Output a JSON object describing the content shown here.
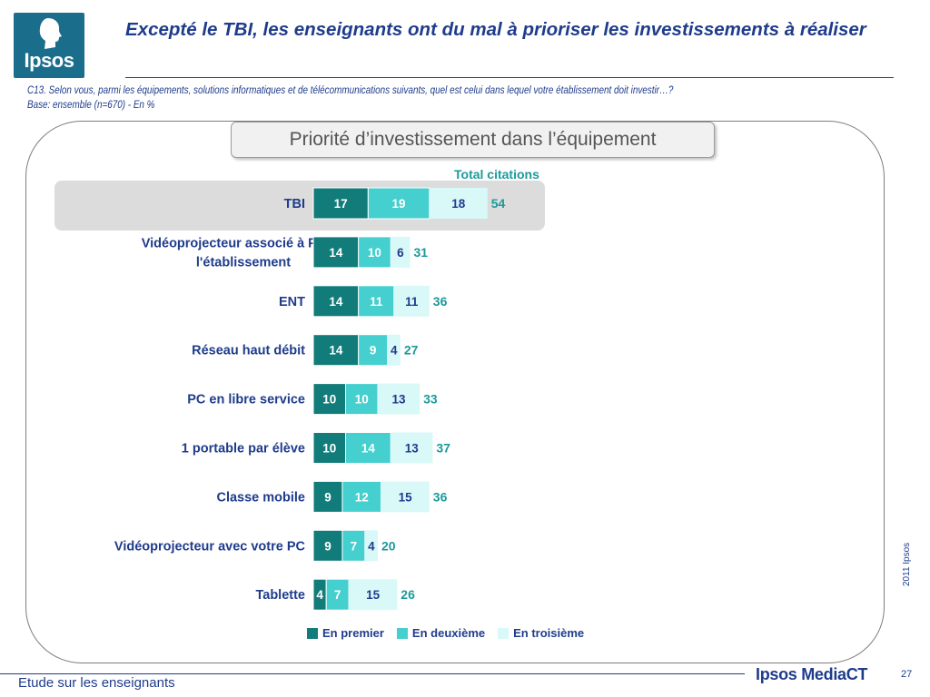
{
  "header": {
    "logo_text": "Ipsos",
    "title": "Excepté le TBI, les enseignants ont du mal à prioriser les investissements à réaliser",
    "question": "C13. Selon vous, parmi les équipements, solutions informatiques et de télécommunications suivants, quel est celui dans lequel votre établissement doit investir…?",
    "base": "Base: ensemble (n=670) - En %"
  },
  "colors": {
    "accent": "#1f3c8c",
    "premier": "#127c7a",
    "deuxieme": "#45cfcf",
    "troisieme": "#d9f8f8",
    "total": "#1c9a9a"
  },
  "chart_data": {
    "type": "bar",
    "orientation": "horizontal",
    "stacked": true,
    "title": "Priorité d’investissement dans l’équipement",
    "total_header": "Total citations",
    "categories": [
      "TBI",
      "Vidéoprojecteur associé à PC de l'établissement",
      "ENT",
      "Réseau haut débit",
      "PC en libre service",
      "1 portable par élève",
      "Classe mobile",
      "Vidéoprojecteur avec votre PC",
      "Tablette"
    ],
    "series": [
      {
        "name": "En premier",
        "values": [
          17,
          14,
          14,
          14,
          10,
          10,
          9,
          9,
          4
        ]
      },
      {
        "name": "En deuxième",
        "values": [
          19,
          10,
          11,
          9,
          10,
          14,
          12,
          7,
          7
        ]
      },
      {
        "name": "En troisième",
        "values": [
          18,
          6,
          11,
          4,
          13,
          13,
          15,
          4,
          15
        ]
      }
    ],
    "totals": [
      54,
      31,
      36,
      27,
      33,
      37,
      36,
      20,
      26
    ],
    "highlighted_category": "TBI",
    "legend_position": "bottom",
    "grid": false
  },
  "footer": {
    "copyright": "2011 Ipsos",
    "left_text": "Etude sur les enseignants",
    "brand": "Ipsos MediaCT",
    "page_number": "27"
  }
}
